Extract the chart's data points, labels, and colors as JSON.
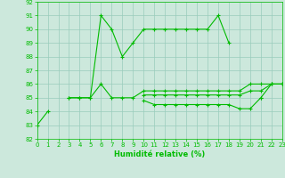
{
  "x": [
    0,
    1,
    2,
    3,
    4,
    5,
    6,
    7,
    8,
    9,
    10,
    11,
    12,
    13,
    14,
    15,
    16,
    17,
    18,
    19,
    20,
    21,
    22,
    23
  ],
  "line1": [
    83,
    84,
    null,
    85,
    85,
    85,
    91,
    90,
    88,
    89,
    90,
    90,
    90,
    90,
    90,
    90,
    90,
    91,
    89,
    null,
    null,
    85,
    null,
    86
  ],
  "line2": [
    null,
    null,
    null,
    85,
    85,
    85,
    86,
    85,
    85,
    85,
    85.5,
    85.5,
    85.5,
    85.5,
    85.5,
    85.5,
    85.5,
    85.5,
    85.5,
    85.5,
    86,
    86,
    86,
    86
  ],
  "line3": [
    null,
    null,
    null,
    null,
    null,
    null,
    null,
    null,
    null,
    null,
    85.2,
    85.2,
    85.2,
    85.2,
    85.2,
    85.2,
    85.2,
    85.2,
    85.2,
    85.2,
    85.5,
    85.5,
    86,
    86
  ],
  "line4": [
    null,
    null,
    null,
    null,
    null,
    null,
    null,
    null,
    null,
    null,
    84.8,
    84.5,
    84.5,
    84.5,
    84.5,
    84.5,
    84.5,
    84.5,
    84.5,
    84.2,
    84.2,
    85,
    86,
    86
  ],
  "ylim": [
    82,
    92
  ],
  "xlim": [
    0,
    23
  ],
  "yticks": [
    82,
    83,
    84,
    85,
    86,
    87,
    88,
    89,
    90,
    91,
    92
  ],
  "xticks": [
    0,
    1,
    2,
    3,
    4,
    5,
    6,
    7,
    8,
    9,
    10,
    11,
    12,
    13,
    14,
    15,
    16,
    17,
    18,
    19,
    20,
    21,
    22,
    23
  ],
  "xlabel": "Humidité relative (%)",
  "line_color": "#00bb00",
  "bg_color": "#cce8dc",
  "grid_color": "#99ccbb"
}
